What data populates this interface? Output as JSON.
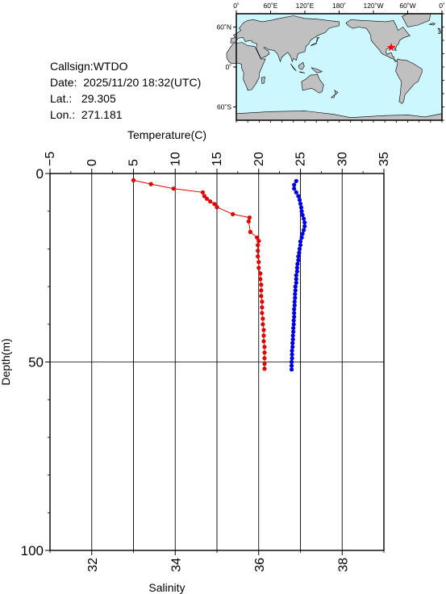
{
  "info": {
    "callsign_label": "Callsign:",
    "callsign": "WTDO",
    "date_label": "Date:",
    "date": "2025/11/20 18:32(UTC)",
    "lat_label": "Lat.:",
    "lat": "29.305",
    "lon_label": "Lon.:",
    "lon": "271.181"
  },
  "map": {
    "top_ticks": [
      "0˚",
      "60˚E",
      "120˚E",
      "180˚",
      "120˚W",
      "60˚W",
      "0˚"
    ],
    "left_ticks": [
      "60˚N",
      "0˚",
      "60˚S"
    ],
    "ocean_color": "#ccf7ff",
    "land_color": "#c0c0c0",
    "marker_color": "#ff0000",
    "marker_lon": 271.181,
    "marker_lat": 29.305
  },
  "chart_data": {
    "type": "scatter",
    "title": "",
    "temperature_axis": {
      "label": "Temperature(C)",
      "range": [
        -5,
        35
      ],
      "ticks": [
        -5,
        0,
        5,
        10,
        15,
        20,
        25,
        30,
        35
      ],
      "tick_labels": [
        "−5",
        "0",
        "5",
        "10",
        "15",
        "20",
        "25",
        "30",
        "35"
      ]
    },
    "salinity_axis": {
      "label": "Salinity",
      "range": [
        31,
        39
      ],
      "ticks": [
        32,
        34,
        36,
        38
      ],
      "tick_labels": [
        "32",
        "34",
        "36",
        "38"
      ]
    },
    "depth_axis": {
      "label": "Depth(m)",
      "range": [
        0,
        100
      ],
      "ticks": [
        0,
        50,
        100
      ],
      "tick_labels": [
        "0",
        "50",
        "100"
      ]
    },
    "grid": true,
    "series": [
      {
        "name": "",
        "variable": "temperature",
        "color": "#e60000",
        "depth": [
          1.8,
          2.8,
          4.0,
          5.0,
          6.0,
          6.7,
          7.4,
          8.1,
          8.9,
          10.8,
          11.7,
          12.7,
          15.5,
          17.0,
          17.9,
          19.0,
          20.5,
          22.0,
          23.5,
          25.0,
          26.5,
          28.0,
          29.5,
          31.0,
          32.5,
          34.0,
          35.5,
          37.0,
          38.5,
          40.0,
          41.5,
          43.0,
          44.5,
          46.0,
          47.5,
          49.0,
          50.5,
          51.8
        ],
        "values": [
          5.0,
          7.1,
          9.8,
          13.3,
          13.5,
          13.8,
          14.2,
          14.7,
          15.0,
          16.9,
          18.9,
          18.8,
          19.0,
          19.8,
          20.0,
          19.9,
          19.9,
          19.9,
          20.0,
          20.0,
          20.2,
          20.2,
          20.3,
          20.3,
          20.3,
          20.4,
          20.4,
          20.4,
          20.5,
          20.5,
          20.6,
          20.6,
          20.6,
          20.7,
          20.7,
          20.7,
          20.7,
          20.7
        ]
      },
      {
        "name": "",
        "variable": "salinity",
        "color": "#0000e6",
        "depth": [
          2.0,
          3.0,
          4.0,
          5.0,
          6.0,
          7.0,
          8.0,
          9.0,
          10.0,
          11.0,
          12.0,
          13.0,
          14.0,
          15.0,
          16.0,
          17.0,
          18.0,
          19.0,
          20.0,
          21.0,
          22.0,
          23.0,
          24.0,
          25.0,
          26.0,
          27.0,
          28.0,
          29.0,
          30.0,
          31.0,
          32.0,
          33.0,
          34.0,
          35.0,
          36.0,
          37.0,
          38.0,
          39.0,
          40.0,
          41.0,
          42.0,
          43.0,
          44.0,
          45.0,
          46.0,
          47.0,
          48.0,
          49.0,
          50.0,
          51.0,
          52.0
        ],
        "values": [
          36.9,
          36.85,
          36.85,
          36.9,
          36.95,
          36.98,
          37.0,
          37.02,
          37.03,
          37.05,
          37.08,
          37.1,
          37.1,
          37.08,
          37.05,
          37.03,
          37.0,
          37.0,
          36.98,
          36.97,
          36.95,
          36.95,
          36.93,
          36.92,
          36.92,
          36.9,
          36.9,
          36.9,
          36.88,
          36.88,
          36.87,
          36.87,
          36.86,
          36.86,
          36.85,
          36.85,
          36.85,
          36.84,
          36.84,
          36.83,
          36.83,
          36.82,
          36.82,
          36.81,
          36.81,
          36.8,
          36.8,
          36.8,
          36.79,
          36.79,
          36.79
        ]
      }
    ]
  }
}
